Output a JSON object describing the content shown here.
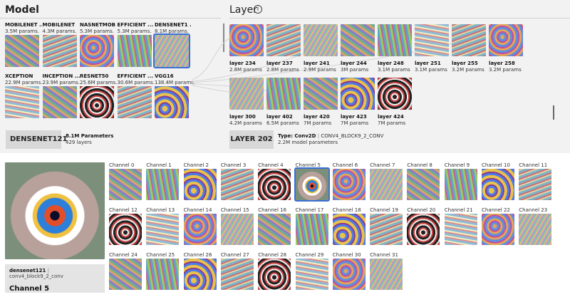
{
  "model_panel": {
    "title": "Model",
    "models": [
      {
        "name": "MOBILENET ...",
        "params": "3.5M params.",
        "tex": "tex-a"
      },
      {
        "name": "MOBILENET",
        "params": "4.3M params.",
        "tex": "tex-b"
      },
      {
        "name": "NASNETMOB ...",
        "params": "5.3M params.",
        "tex": "tex-c"
      },
      {
        "name": "EFFICIENT ...",
        "params": "5.3M params.",
        "tex": "tex-d"
      },
      {
        "name": "DENSENET1 ...",
        "params": "8.1M params.",
        "tex": "tex-f"
      },
      {
        "name": "XCEPTION",
        "params": "22.9M params.",
        "tex": "tex-h"
      },
      {
        "name": "INCEPTION ...",
        "params": "23.9M params.",
        "tex": "tex-a"
      },
      {
        "name": "RESNET50",
        "params": "25.6M params.",
        "tex": "tex-e"
      },
      {
        "name": "EFFICIENT ...",
        "params": "30.6M params.",
        "tex": "tex-b"
      },
      {
        "name": "VGG16",
        "params": "138.4M params.",
        "tex": "tex-g"
      }
    ],
    "selected": {
      "name": "DENSENET121",
      "parameters": "8.1M Parameters",
      "layers": "429 layers"
    }
  },
  "layer_panel": {
    "title": "Layer",
    "info_icon": "i",
    "layers": [
      {
        "name": "layer 234",
        "params": "2.8M params",
        "tex": "tex-c"
      },
      {
        "name": "layer 237",
        "params": "2.8M params",
        "tex": "tex-b"
      },
      {
        "name": "layer 241",
        "params": "2.9M params",
        "tex": "tex-f"
      },
      {
        "name": "layer 244",
        "params": "3M params",
        "tex": "tex-a"
      },
      {
        "name": "layer 248",
        "params": "3.1M params",
        "tex": "tex-d"
      },
      {
        "name": "layer 251",
        "params": "3.1M params",
        "tex": "tex-h"
      },
      {
        "name": "layer 255",
        "params": "3.2M params",
        "tex": "tex-b"
      },
      {
        "name": "layer 258",
        "params": "3.2M params",
        "tex": "tex-c"
      },
      {
        "name": "layer 300",
        "params": "4.2M params",
        "tex": "tex-f"
      },
      {
        "name": "layer 402",
        "params": "6.5M params",
        "tex": "tex-d"
      },
      {
        "name": "layer 420",
        "params": "7M params",
        "tex": "tex-a"
      },
      {
        "name": "layer 423",
        "params": "7M params",
        "tex": "tex-g"
      },
      {
        "name": "layer 424",
        "params": "7M params",
        "tex": "tex-e"
      }
    ],
    "selected": {
      "name": "LAYER 202",
      "type_label": "Type:",
      "type_value": "Conv2D",
      "block": "CONV4_BLOCK9_2_CONV",
      "model_params": "2.2M model parameters"
    }
  },
  "channel_panel": {
    "model": "densenet121",
    "layer": "conv4_block9_2_conv",
    "selected_title": "Channel 5",
    "channels": [
      "Channel 0",
      "Channel 1",
      "Channel 2",
      "Channel 3",
      "Channel 4",
      "Channel 5",
      "Channel 6",
      "Channel 7",
      "Channel 8",
      "Channel 9",
      "Channel 10",
      "Channel 11",
      "Channel 12",
      "Channel 13",
      "Channel 14",
      "Channel 15",
      "Channel 16",
      "Channel 17",
      "Channel 18",
      "Channel 19",
      "Channel 20",
      "Channel 21",
      "Channel 22",
      "Channel 23",
      "Channel 24",
      "Channel 25",
      "Channel 26",
      "Channel 27",
      "Channel 28",
      "Channel 29",
      "Channel 30",
      "Channel 31"
    ],
    "selected_index": 5
  },
  "colors": {
    "selection": "#3b6fd4",
    "panel_bg": "#f2f2f2",
    "summary_bg": "#d8d8d8"
  }
}
